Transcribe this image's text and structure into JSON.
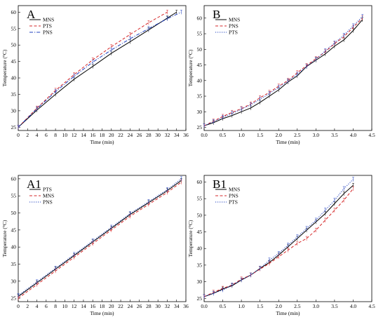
{
  "chart_data": [
    {
      "type": "line",
      "panel_label": "A",
      "xlabel": "Time (min)",
      "ylabel": "Temperature (°C)",
      "xlim": [
        0,
        36
      ],
      "ylim": [
        24,
        62
      ],
      "xticks": [
        0,
        2,
        4,
        6,
        8,
        10,
        12,
        14,
        16,
        18,
        20,
        22,
        24,
        26,
        28,
        30,
        32,
        34,
        36
      ],
      "yticks": [
        25,
        30,
        35,
        40,
        45,
        50,
        55,
        60
      ],
      "legend_position": "top-left",
      "series": [
        {
          "name": "MNS",
          "color": "#000000",
          "dash": "solid",
          "x": [
            0,
            4,
            8,
            12,
            16,
            20,
            24,
            28,
            32,
            34
          ],
          "y": [
            25,
            30.2,
            35.0,
            39.6,
            43.5,
            47.5,
            51.0,
            54.6,
            58.2,
            60
          ]
        },
        {
          "name": "PTS",
          "color": "#d62728",
          "dash": "dashed",
          "x": [
            0,
            4,
            8,
            12,
            16,
            20,
            24,
            28,
            32
          ],
          "y": [
            25,
            30.8,
            36.2,
            41.0,
            45.5,
            49.5,
            53.2,
            56.8,
            60
          ]
        },
        {
          "name": "PNS",
          "color": "#1f3fbf",
          "dash": "dashdot",
          "x": [
            0,
            4,
            8,
            12,
            16,
            20,
            24,
            28,
            32,
            35
          ],
          "y": [
            25,
            30.6,
            35.8,
            40.5,
            44.8,
            48.5,
            51.9,
            55.0,
            58.0,
            60
          ]
        }
      ]
    },
    {
      "type": "line",
      "panel_label": "B",
      "xlabel": "Time (min)",
      "ylabel": "Temperature (°C)",
      "xlim": [
        0,
        4.5
      ],
      "ylim": [
        24,
        64
      ],
      "xticks": [
        0.0,
        0.5,
        1.0,
        1.5,
        2.0,
        2.5,
        3.0,
        3.5,
        4.0,
        4.5
      ],
      "yticks": [
        25,
        30,
        35,
        40,
        45,
        50,
        55,
        60
      ],
      "legend_position": "top-left",
      "series": [
        {
          "name": "MNS",
          "color": "#000000",
          "dash": "solid",
          "x": [
            0,
            0.25,
            0.5,
            0.75,
            1.0,
            1.25,
            1.5,
            1.75,
            2.0,
            2.25,
            2.5,
            2.75,
            3.0,
            3.25,
            3.5,
            3.75,
            4.0,
            4.25
          ],
          "y": [
            25.5,
            26.5,
            27.8,
            28.8,
            30.0,
            31.2,
            33.0,
            35.0,
            37.0,
            39.5,
            41.5,
            44.5,
            46.5,
            48.5,
            51.0,
            53.0,
            56.0,
            59.5
          ]
        },
        {
          "name": "PNS",
          "color": "#d62728",
          "dash": "dashed",
          "x": [
            0,
            0.25,
            0.5,
            0.75,
            1.0,
            1.25,
            1.5,
            1.75,
            2.0,
            2.25,
            2.5,
            2.75,
            3.0,
            3.25,
            3.5,
            3.75,
            4.0,
            4.25
          ],
          "y": [
            25.5,
            27.0,
            28.5,
            29.8,
            31.0,
            32.5,
            34.5,
            36.2,
            38.2,
            40.0,
            42.5,
            44.8,
            47.0,
            49.2,
            51.8,
            54.0,
            57.0,
            60.0
          ]
        },
        {
          "name": "PTS",
          "color": "#1f3fbf",
          "dash": "dotted",
          "x": [
            0,
            0.25,
            0.5,
            0.75,
            1.0,
            1.25,
            1.5,
            1.75,
            2.0,
            2.25,
            2.5,
            2.75,
            3.0,
            3.25,
            3.5,
            3.75,
            4.0,
            4.25
          ],
          "y": [
            25.5,
            26.8,
            28.2,
            29.5,
            30.8,
            32.2,
            34.0,
            35.8,
            37.8,
            39.8,
            42.0,
            44.5,
            46.8,
            49.5,
            52.0,
            54.5,
            57.5,
            60.5
          ]
        }
      ]
    },
    {
      "type": "line",
      "panel_label": "A1",
      "xlabel": "Time (min)",
      "ylabel": "Temperature (°C)",
      "xlim": [
        0,
        36
      ],
      "ylim": [
        24,
        61
      ],
      "xticks": [
        0,
        2,
        4,
        6,
        8,
        10,
        12,
        14,
        16,
        18,
        20,
        22,
        24,
        26,
        28,
        30,
        32,
        34,
        36
      ],
      "yticks": [
        25,
        30,
        35,
        40,
        45,
        50,
        55,
        60
      ],
      "legend_position": "top-left",
      "series": [
        {
          "name": "PTS",
          "color": "#000000",
          "dash": "solid",
          "x": [
            0,
            4,
            8,
            12,
            16,
            20,
            24,
            28,
            32,
            35
          ],
          "y": [
            25.5,
            29.5,
            33.5,
            37.5,
            41.5,
            45.5,
            49.5,
            53.0,
            56.5,
            59.5
          ]
        },
        {
          "name": "MNS",
          "color": "#d62728",
          "dash": "dashed",
          "x": [
            0,
            4,
            8,
            12,
            16,
            20,
            24,
            28,
            32,
            35
          ],
          "y": [
            25.0,
            29.0,
            33.0,
            37.0,
            41.0,
            45.0,
            49.0,
            52.5,
            56.0,
            59.0
          ]
        },
        {
          "name": "PNS",
          "color": "#1f3fbf",
          "dash": "dotted",
          "x": [
            0,
            4,
            8,
            12,
            16,
            20,
            24,
            28,
            32,
            35
          ],
          "y": [
            25.8,
            29.8,
            33.8,
            37.8,
            41.8,
            45.8,
            49.8,
            53.3,
            56.8,
            60.0
          ]
        }
      ]
    },
    {
      "type": "line",
      "panel_label": "B1",
      "xlabel": "Time (min)",
      "ylabel": "Temperature (°C)",
      "xlim": [
        0,
        4.5
      ],
      "ylim": [
        24,
        62
      ],
      "xticks": [
        0.0,
        0.5,
        1.0,
        1.5,
        2.0,
        2.5,
        3.0,
        3.5,
        4.0,
        4.5
      ],
      "yticks": [
        25,
        30,
        35,
        40,
        45,
        50,
        55,
        60
      ],
      "legend_position": "top-left",
      "series": [
        {
          "name": "MNS",
          "color": "#000000",
          "dash": "solid",
          "x": [
            0,
            0.25,
            0.5,
            0.75,
            1.0,
            1.25,
            1.5,
            1.75,
            2.0,
            2.25,
            2.5,
            2.75,
            3.0,
            3.25,
            3.5,
            3.75,
            4.0
          ],
          "y": [
            25.5,
            26.5,
            27.8,
            28.8,
            30.5,
            32.0,
            34.0,
            35.8,
            38.0,
            40.5,
            43.0,
            45.5,
            48.0,
            50.5,
            53.5,
            56.5,
            59.0
          ]
        },
        {
          "name": "PNS",
          "color": "#d62728",
          "dash": "dashed",
          "x": [
            0,
            0.25,
            0.5,
            0.75,
            1.0,
            1.25,
            1.5,
            1.75,
            2.0,
            2.25,
            2.5,
            2.75,
            3.0,
            3.25,
            3.5,
            3.75,
            4.0
          ],
          "y": [
            25.5,
            26.8,
            28.0,
            29.0,
            30.8,
            32.0,
            33.8,
            35.5,
            37.5,
            39.5,
            41.5,
            43.0,
            45.5,
            48.5,
            51.5,
            54.5,
            58.0
          ]
        },
        {
          "name": "PTS",
          "color": "#1f3fbf",
          "dash": "dotted",
          "x": [
            0,
            0.25,
            0.5,
            0.75,
            1.0,
            1.25,
            1.5,
            1.75,
            2.0,
            2.25,
            2.5,
            2.75,
            3.0,
            3.25,
            3.5,
            3.75,
            4.0
          ],
          "y": [
            25.5,
            26.5,
            27.5,
            29.0,
            30.5,
            32.0,
            34.0,
            36.5,
            38.5,
            41.0,
            43.5,
            46.0,
            48.5,
            51.5,
            54.5,
            58.0,
            60.8
          ]
        }
      ]
    }
  ]
}
